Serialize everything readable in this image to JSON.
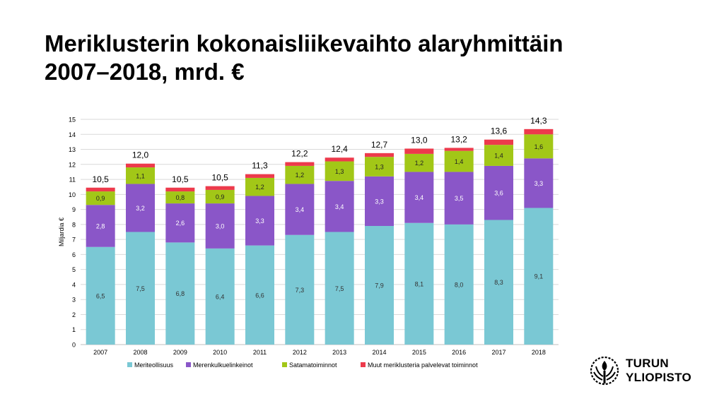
{
  "slide": {
    "title_line1": "Meriklusterin kokonaisliikevaihto alaryhmittäin",
    "title_line2": "2007–2018, mrd. €"
  },
  "logo": {
    "line1": "TURUN",
    "line2": "YLIOPISTO"
  },
  "chart_data": {
    "type": "bar",
    "stacked": true,
    "categories": [
      "2007",
      "2008",
      "2009",
      "2010",
      "2011",
      "2012",
      "2013",
      "2014",
      "2015",
      "2016",
      "2017",
      "2018"
    ],
    "ylabel": "Miljardia €",
    "ylim": [
      0,
      15
    ],
    "yticks": [
      0,
      1,
      2,
      3,
      4,
      5,
      6,
      7,
      8,
      9,
      10,
      11,
      12,
      13,
      14,
      15
    ],
    "grid": true,
    "legend_position": "bottom",
    "series": [
      {
        "name": "Meriteollisuus",
        "color": "#7ac8d4",
        "values": [
          6.5,
          7.5,
          6.8,
          6.4,
          6.6,
          7.3,
          7.5,
          7.9,
          8.1,
          8.0,
          8.3,
          9.1
        ],
        "labels": [
          "6,5",
          "7,5",
          "6,8",
          "6,4",
          "6,6",
          "7,3",
          "7,5",
          "7,9",
          "8,1",
          "8,0",
          "8,3",
          "9,1"
        ]
      },
      {
        "name": "Merenkulkuelinkeinot",
        "color": "#8a56c8",
        "values": [
          2.8,
          3.2,
          2.6,
          3.0,
          3.3,
          3.4,
          3.4,
          3.3,
          3.4,
          3.5,
          3.6,
          3.3
        ],
        "labels": [
          "2,8",
          "3,2",
          "2,6",
          "3,0",
          "3,3",
          "3,4",
          "3,4",
          "3,3",
          "3,4",
          "3,5",
          "3,6",
          "3,3"
        ]
      },
      {
        "name": "Satamatoiminnot",
        "color": "#a2c717",
        "values": [
          0.9,
          1.1,
          0.8,
          0.9,
          1.2,
          1.2,
          1.3,
          1.3,
          1.2,
          1.4,
          1.4,
          1.6
        ],
        "labels": [
          "0,9",
          "1,1",
          "0,8",
          "0,9",
          "1,2",
          "1,2",
          "1,3",
          "1,3",
          "1,2",
          "1,4",
          "1,4",
          "1,6"
        ]
      },
      {
        "name": "Muut meriklusteria palvelevat toiminnot",
        "color": "#ed3a4c",
        "values": [
          0.25,
          0.25,
          0.25,
          0.25,
          0.25,
          0.25,
          0.25,
          0.25,
          0.35,
          0.2,
          0.35,
          0.35
        ]
      }
    ],
    "totals": [
      "10,5",
      "12,0",
      "10,5",
      "10,5",
      "11,3",
      "12,2",
      "12,4",
      "12,7",
      "13,0",
      "13,2",
      "13,6",
      "14,3"
    ]
  }
}
